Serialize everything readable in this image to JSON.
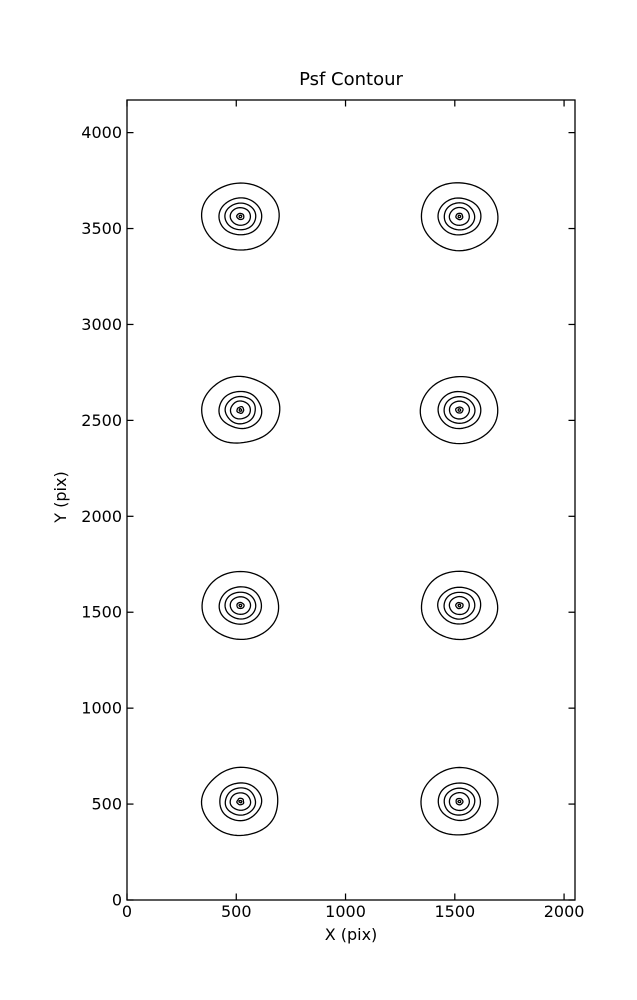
{
  "figure": {
    "background": "#ffffff",
    "line_color": "#000000"
  },
  "chart_data": {
    "type": "contour",
    "title": "Psf Contour",
    "xlabel": "X (pix)",
    "ylabel": "Y (pix)",
    "xlim": [
      0,
      2050
    ],
    "ylim": [
      0,
      4170
    ],
    "xticks": [
      0,
      500,
      1000,
      1500,
      2000
    ],
    "yticks": [
      0,
      500,
      1000,
      1500,
      2000,
      2500,
      3000,
      3500,
      4000
    ],
    "grid": false,
    "legend": "none",
    "tick_direction": "in",
    "contour_color": "#000000",
    "contour_levels_radii_pix": [
      176,
      97,
      70,
      46,
      16,
      6
    ],
    "psf_sources": [
      {
        "x": 519,
        "y": 3563,
        "seed": 1,
        "wobble": 0.6
      },
      {
        "x": 1521,
        "y": 3563,
        "seed": 2,
        "wobble": 0.8
      },
      {
        "x": 519,
        "y": 2554,
        "seed": 3,
        "wobble": 1.3
      },
      {
        "x": 1521,
        "y": 2554,
        "seed": 4,
        "wobble": 0.7
      },
      {
        "x": 519,
        "y": 1535,
        "seed": 5,
        "wobble": 0.6
      },
      {
        "x": 1521,
        "y": 1535,
        "seed": 6,
        "wobble": 0.9
      },
      {
        "x": 519,
        "y": 513,
        "seed": 7,
        "wobble": 1.2
      },
      {
        "x": 1521,
        "y": 513,
        "seed": 8,
        "wobble": 0.7
      }
    ]
  }
}
